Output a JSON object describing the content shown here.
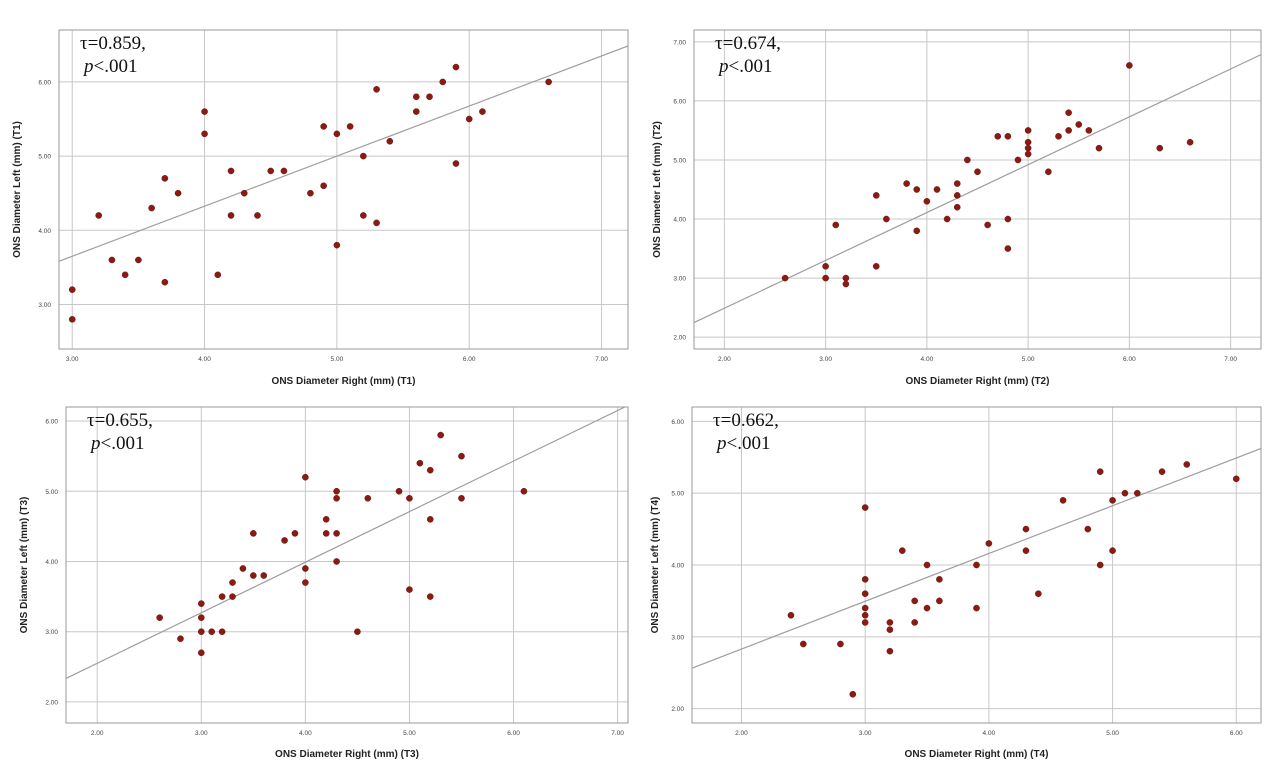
{
  "chart_data": [
    {
      "type": "scatter",
      "xlabel": "ONS Diameter Right (mm) (T1)",
      "ylabel": "ONS Diameter Left (mm) (T1)",
      "annotation": {
        "tau": "τ=0.859,",
        "p_prefix": "p",
        "p_suffix": "<.001"
      },
      "xlim": [
        2.9,
        7.2
      ],
      "ylim": [
        2.4,
        6.7
      ],
      "xticks": [
        3,
        4,
        5,
        6,
        7
      ],
      "yticks": [
        3,
        4,
        5,
        6
      ],
      "xtick_labels": [
        "3.00",
        "4.00",
        "5.00",
        "6.00",
        "7.00"
      ],
      "ytick_labels": [
        "3.00",
        "4.00",
        "5.00",
        "6.00"
      ],
      "fit_line": {
        "intercept": 1.625,
        "slope": 0.675
      },
      "grid": true,
      "points": [
        [
          3.0,
          3.2
        ],
        [
          3.0,
          2.8
        ],
        [
          3.2,
          4.2
        ],
        [
          3.3,
          3.6
        ],
        [
          3.4,
          3.4
        ],
        [
          3.5,
          3.6
        ],
        [
          3.6,
          4.3
        ],
        [
          3.7,
          4.7
        ],
        [
          3.7,
          3.3
        ],
        [
          3.8,
          4.5
        ],
        [
          4.0,
          5.6
        ],
        [
          4.0,
          5.3
        ],
        [
          4.1,
          3.4
        ],
        [
          4.2,
          4.8
        ],
        [
          4.2,
          4.2
        ],
        [
          4.3,
          4.5
        ],
        [
          4.4,
          4.2
        ],
        [
          4.5,
          4.8
        ],
        [
          4.6,
          4.8
        ],
        [
          4.8,
          4.5
        ],
        [
          4.9,
          5.4
        ],
        [
          4.9,
          4.6
        ],
        [
          5.0,
          5.3
        ],
        [
          5.0,
          3.8
        ],
        [
          5.1,
          5.4
        ],
        [
          5.2,
          5.0
        ],
        [
          5.2,
          4.2
        ],
        [
          5.3,
          5.9
        ],
        [
          5.3,
          4.1
        ],
        [
          5.4,
          5.2
        ],
        [
          5.6,
          5.8
        ],
        [
          5.6,
          5.6
        ],
        [
          5.7,
          5.8
        ],
        [
          5.8,
          6.0
        ],
        [
          5.9,
          6.2
        ],
        [
          5.9,
          4.9
        ],
        [
          6.0,
          5.5
        ],
        [
          6.1,
          5.6
        ],
        [
          6.6,
          6.0
        ]
      ]
    },
    {
      "type": "scatter",
      "xlabel": "ONS Diameter Right (mm) (T2)",
      "ylabel": "ONS Diameter Left (mm) (T2)",
      "annotation": {
        "tau": "τ=0.674,",
        "p_prefix": "p",
        "p_suffix": "<.001"
      },
      "xlim": [
        1.7,
        7.3
      ],
      "ylim": [
        1.8,
        7.2
      ],
      "xticks": [
        2,
        3,
        4,
        5,
        6,
        7
      ],
      "yticks": [
        2,
        3,
        4,
        5,
        6,
        7
      ],
      "xtick_labels": [
        "2.00",
        "3.00",
        "4.00",
        "5.00",
        "6.00",
        "7.00"
      ],
      "ytick_labels": [
        "2.00",
        "3.00",
        "4.00",
        "5.00",
        "6.00",
        "7.00"
      ],
      "fit_line": {
        "intercept": 0.87,
        "slope": 0.81
      },
      "grid": true,
      "points": [
        [
          2.6,
          3.0
        ],
        [
          3.0,
          3.2
        ],
        [
          3.0,
          3.0
        ],
        [
          3.1,
          3.9
        ],
        [
          3.2,
          3.0
        ],
        [
          3.2,
          2.9
        ],
        [
          3.5,
          4.4
        ],
        [
          3.5,
          3.2
        ],
        [
          3.6,
          4.0
        ],
        [
          3.8,
          4.6
        ],
        [
          3.9,
          4.5
        ],
        [
          3.9,
          3.8
        ],
        [
          4.0,
          4.3
        ],
        [
          4.1,
          4.5
        ],
        [
          4.2,
          4.0
        ],
        [
          4.3,
          4.6
        ],
        [
          4.3,
          4.4
        ],
        [
          4.3,
          4.2
        ],
        [
          4.4,
          5.0
        ],
        [
          4.5,
          4.8
        ],
        [
          4.6,
          3.9
        ],
        [
          4.7,
          5.4
        ],
        [
          4.8,
          5.4
        ],
        [
          4.8,
          4.0
        ],
        [
          4.8,
          3.5
        ],
        [
          4.9,
          5.0
        ],
        [
          5.0,
          5.5
        ],
        [
          5.0,
          5.3
        ],
        [
          5.0,
          5.2
        ],
        [
          5.0,
          5.1
        ],
        [
          5.2,
          4.8
        ],
        [
          5.3,
          5.4
        ],
        [
          5.4,
          5.8
        ],
        [
          5.4,
          5.5
        ],
        [
          5.5,
          5.6
        ],
        [
          5.6,
          5.5
        ],
        [
          5.7,
          5.2
        ],
        [
          6.0,
          6.6
        ],
        [
          6.3,
          5.2
        ],
        [
          6.6,
          5.3
        ]
      ]
    },
    {
      "type": "scatter",
      "xlabel": "ONS Diameter Right (mm) (T3)",
      "ylabel": "ONS Diameter Left (mm) (T3)",
      "annotation": {
        "tau": "τ=0.655,",
        "p_prefix": "p",
        "p_suffix": "<.001"
      },
      "xlim": [
        1.7,
        7.1
      ],
      "ylim": [
        1.7,
        6.2
      ],
      "xticks": [
        2,
        3,
        4,
        5,
        6,
        7
      ],
      "yticks": [
        2,
        3,
        4,
        5,
        6
      ],
      "xtick_labels": [
        "2.00",
        "3.00",
        "4.00",
        "5.00",
        "6.00",
        "7.00"
      ],
      "ytick_labels": [
        "2.00",
        "3.00",
        "4.00",
        "5.00",
        "6.00"
      ],
      "fit_line": {
        "intercept": 1.11,
        "slope": 0.72
      },
      "grid": true,
      "points": [
        [
          2.6,
          3.2
        ],
        [
          2.8,
          2.9
        ],
        [
          3.0,
          3.4
        ],
        [
          3.0,
          3.2
        ],
        [
          3.0,
          3.0
        ],
        [
          3.0,
          2.7
        ],
        [
          3.1,
          3.0
        ],
        [
          3.2,
          3.5
        ],
        [
          3.2,
          3.0
        ],
        [
          3.3,
          3.7
        ],
        [
          3.3,
          3.5
        ],
        [
          3.4,
          3.9
        ],
        [
          3.5,
          4.4
        ],
        [
          3.5,
          3.8
        ],
        [
          3.6,
          3.8
        ],
        [
          3.8,
          4.3
        ],
        [
          3.9,
          4.4
        ],
        [
          4.0,
          5.2
        ],
        [
          4.0,
          3.9
        ],
        [
          4.0,
          3.7
        ],
        [
          4.2,
          4.6
        ],
        [
          4.2,
          4.4
        ],
        [
          4.3,
          5.0
        ],
        [
          4.3,
          4.9
        ],
        [
          4.3,
          4.4
        ],
        [
          4.3,
          4.0
        ],
        [
          4.5,
          3.0
        ],
        [
          4.6,
          4.9
        ],
        [
          4.9,
          5.0
        ],
        [
          5.0,
          4.9
        ],
        [
          5.0,
          3.6
        ],
        [
          5.1,
          5.4
        ],
        [
          5.2,
          5.3
        ],
        [
          5.2,
          4.6
        ],
        [
          5.2,
          3.5
        ],
        [
          5.3,
          5.8
        ],
        [
          5.5,
          5.5
        ],
        [
          5.5,
          4.9
        ],
        [
          6.1,
          5.0
        ]
      ]
    },
    {
      "type": "scatter",
      "xlabel": "ONS Diameter Right (mm) (T4)",
      "ylabel": "ONS Diameter Left (mm) (T4)",
      "annotation": {
        "tau": "τ=0.662,",
        "p_prefix": "p",
        "p_suffix": "<.001"
      },
      "xlim": [
        1.6,
        6.2
      ],
      "ylim": [
        1.8,
        6.2
      ],
      "xticks": [
        2,
        3,
        4,
        5,
        6
      ],
      "yticks": [
        2,
        3,
        4,
        5,
        6
      ],
      "xtick_labels": [
        "2.00",
        "3.00",
        "4.00",
        "5.00",
        "6.00"
      ],
      "ytick_labels": [
        "2.00",
        "3.00",
        "4.00",
        "5.00",
        "6.00"
      ],
      "fit_line": {
        "intercept": 1.5,
        "slope": 0.665
      },
      "grid": true,
      "points": [
        [
          2.4,
          3.3
        ],
        [
          2.5,
          2.9
        ],
        [
          2.8,
          2.9
        ],
        [
          2.9,
          2.2
        ],
        [
          3.0,
          4.8
        ],
        [
          3.0,
          3.8
        ],
        [
          3.0,
          3.6
        ],
        [
          3.0,
          3.4
        ],
        [
          3.0,
          3.3
        ],
        [
          3.0,
          3.2
        ],
        [
          3.2,
          3.2
        ],
        [
          3.2,
          3.1
        ],
        [
          3.2,
          2.8
        ],
        [
          3.3,
          4.2
        ],
        [
          3.4,
          3.5
        ],
        [
          3.4,
          3.2
        ],
        [
          3.5,
          4.0
        ],
        [
          3.5,
          3.4
        ],
        [
          3.6,
          3.8
        ],
        [
          3.6,
          3.5
        ],
        [
          3.9,
          4.0
        ],
        [
          3.9,
          3.4
        ],
        [
          4.0,
          4.3
        ],
        [
          4.3,
          4.5
        ],
        [
          4.3,
          4.2
        ],
        [
          4.4,
          3.6
        ],
        [
          4.6,
          4.9
        ],
        [
          4.8,
          4.5
        ],
        [
          4.9,
          5.3
        ],
        [
          4.9,
          4.0
        ],
        [
          5.0,
          4.9
        ],
        [
          5.0,
          4.2
        ],
        [
          5.1,
          5.0
        ],
        [
          5.2,
          5.0
        ],
        [
          5.4,
          5.3
        ],
        [
          5.6,
          5.4
        ],
        [
          6.0,
          5.2
        ]
      ]
    }
  ]
}
